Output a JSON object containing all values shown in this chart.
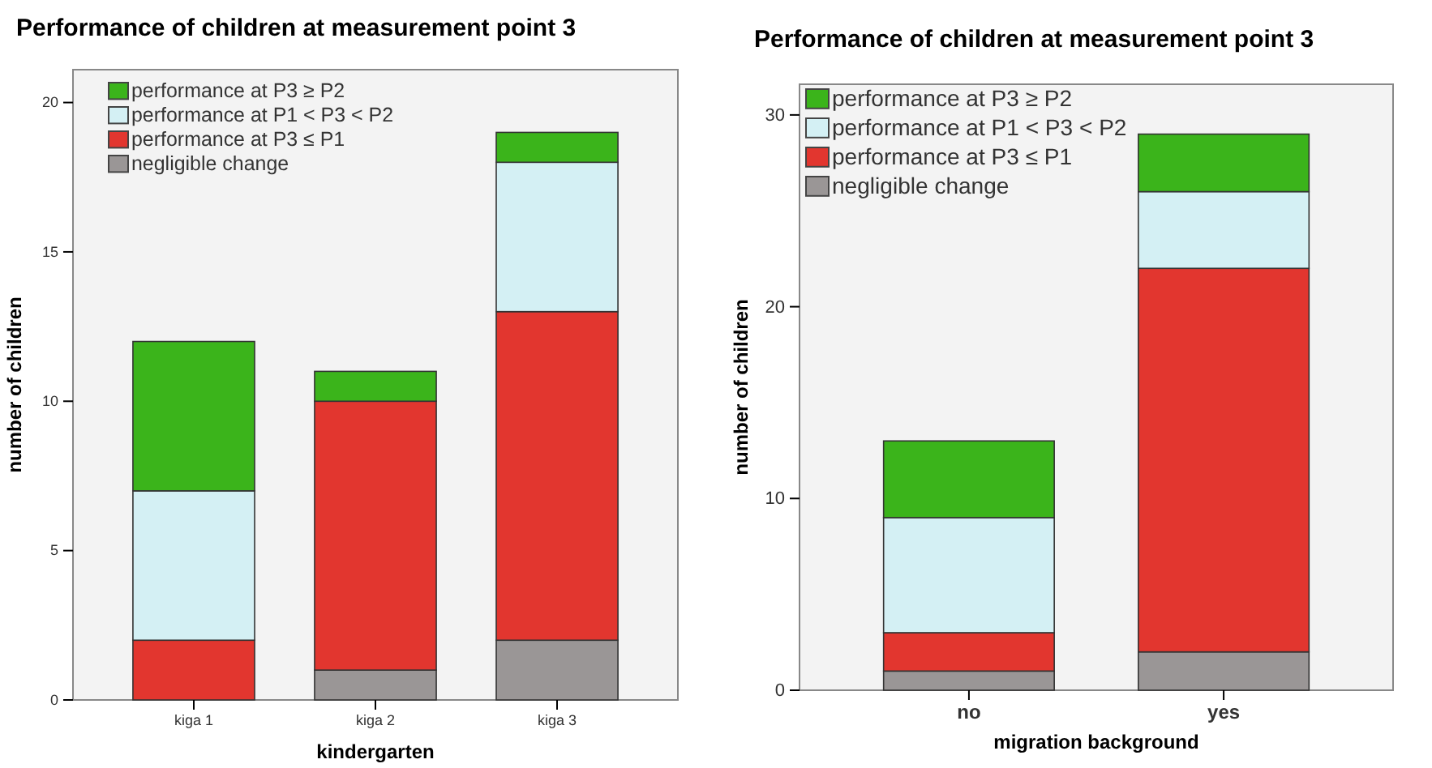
{
  "chart_data": [
    {
      "type": "bar",
      "title": "Performance of children at measurement point 3",
      "xlabel": "kindergarten",
      "ylabel": "number of children",
      "categories": [
        "kiga 1",
        "kiga 2",
        "kiga 3"
      ],
      "stacked": true,
      "legend": "top left",
      "grid": false,
      "ylim": [
        0,
        21.1
      ],
      "yticks": [
        0,
        5,
        10,
        15,
        20
      ],
      "series": [
        {
          "name": "negligible change",
          "color": "#9a9696",
          "values": [
            0,
            1,
            2
          ]
        },
        {
          "name": "performance at P3 ≤ P1",
          "color": "#e2362f",
          "values": [
            2,
            9,
            11
          ]
        },
        {
          "name": "performance at P1 < P3 < P2",
          "color": "#d4f0f4",
          "values": [
            5,
            0,
            5
          ]
        },
        {
          "name": "performance at P3 ≥ P2",
          "color": "#3bb41b",
          "values": [
            5,
            1,
            1
          ]
        }
      ]
    },
    {
      "type": "bar",
      "title": "Performance of children at measurement point 3",
      "xlabel": "migration background",
      "ylabel": "number of children",
      "categories": [
        "no",
        "yes"
      ],
      "stacked": true,
      "legend": "top left",
      "grid": false,
      "ylim": [
        0,
        31.6
      ],
      "yticks": [
        0,
        10,
        20,
        30
      ],
      "series": [
        {
          "name": "negligible change",
          "color": "#9a9696",
          "values": [
            1,
            2
          ]
        },
        {
          "name": "performance at P3 ≤ P1",
          "color": "#e2362f",
          "values": [
            2,
            20
          ]
        },
        {
          "name": "performance at P1 < P3 < P2",
          "color": "#d4f0f4",
          "values": [
            6,
            4
          ]
        },
        {
          "name": "performance at P3 ≥ P2",
          "color": "#3bb41b",
          "values": [
            4,
            3
          ]
        }
      ]
    }
  ]
}
